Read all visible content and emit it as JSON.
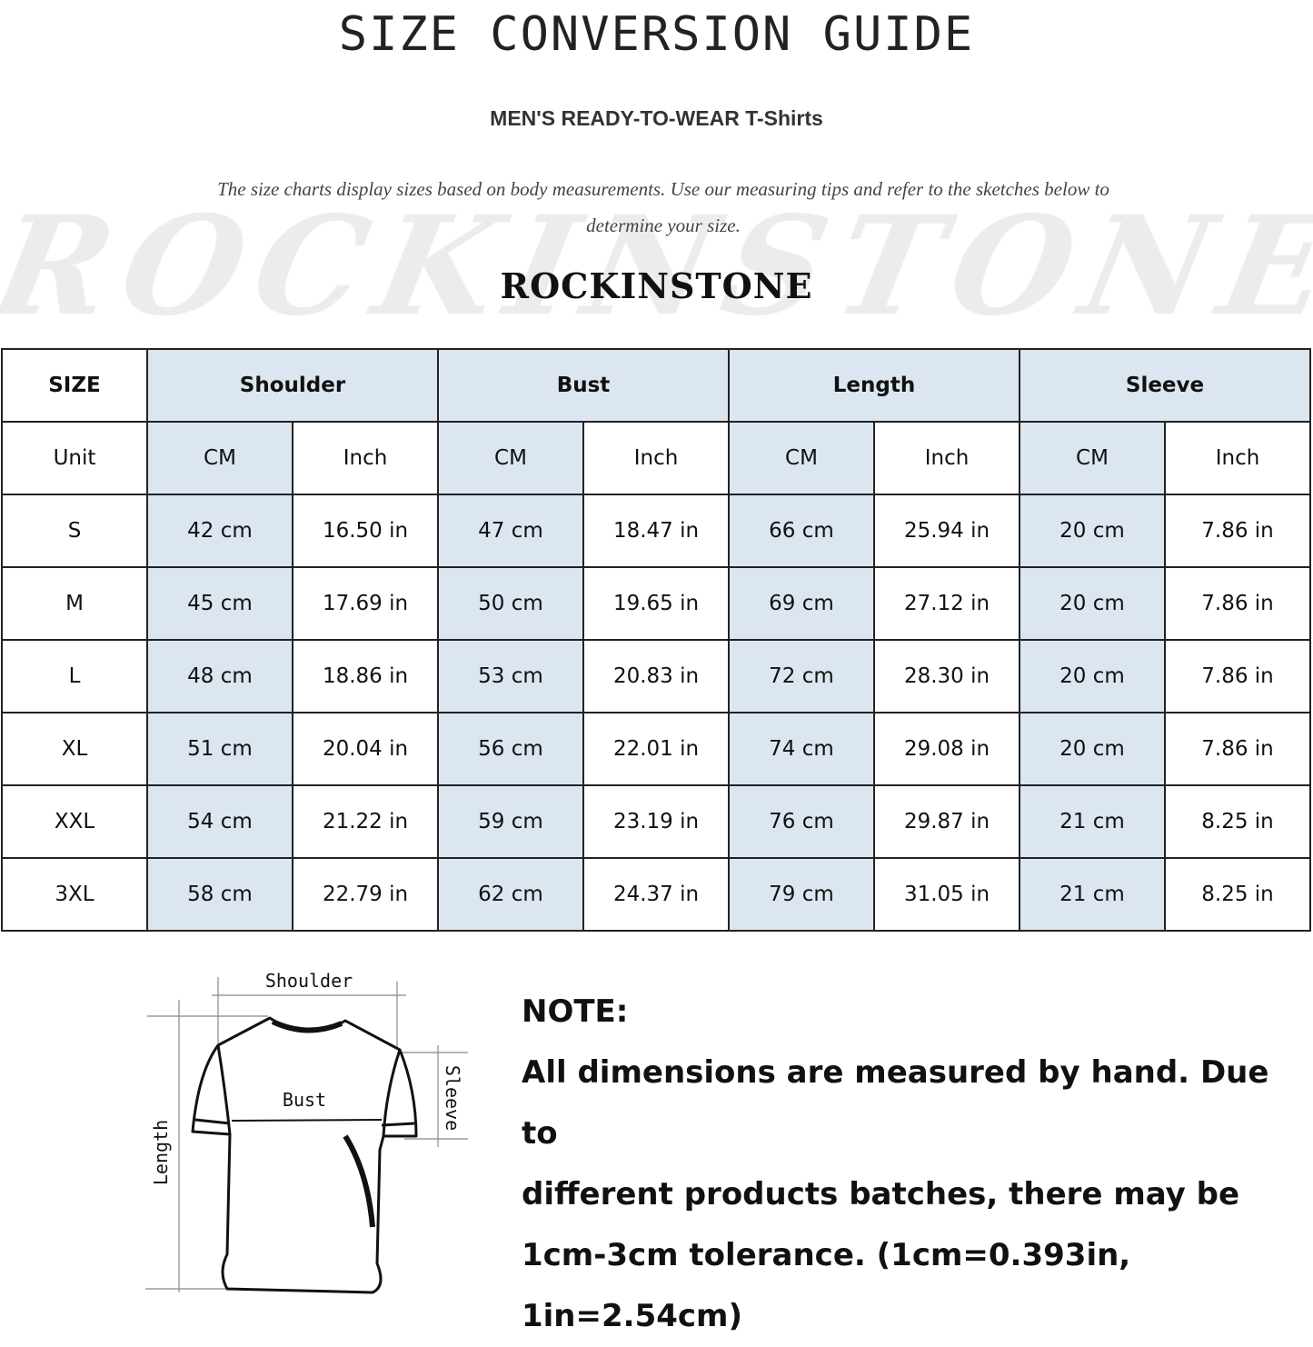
{
  "title": "SIZE CONVERSION GUIDE",
  "subtitle": "MEN'S READY-TO-WEAR T-Shirts",
  "description": "The size charts display sizes based on body measurements. Use our measuring tips and refer to the sketches below to determine your size.",
  "watermark": "ROCKINSTONE",
  "brand": "ROCKINSTONE",
  "colors": {
    "header_fill": "#dce6f0",
    "border": "#222222"
  },
  "table": {
    "size_label": "SIZE",
    "unit_label": "Unit",
    "groups": [
      "Shoulder",
      "Bust",
      "Length",
      "Sleeve"
    ],
    "units": [
      "CM",
      "Inch",
      "CM",
      "Inch",
      "CM",
      "Inch",
      "CM",
      "Inch"
    ],
    "rows": [
      {
        "size": "S",
        "values": [
          "42 cm",
          "16.50 in",
          "47 cm",
          "18.47  in",
          "66 cm",
          "25.94  in",
          "20 cm",
          "7.86  in"
        ]
      },
      {
        "size": "M",
        "values": [
          "45 cm",
          "17.69  in",
          "50 cm",
          "19.65  in",
          "69 cm",
          "27.12  in",
          "20 cm",
          "7.86  in"
        ]
      },
      {
        "size": "L",
        "values": [
          "48 cm",
          "18.86  in",
          "53 cm",
          "20.83  in",
          "72 cm",
          "28.30  in",
          "20 cm",
          "7.86  in"
        ]
      },
      {
        "size": "XL",
        "values": [
          "51 cm",
          "20.04  in",
          "56 cm",
          "22.01  in",
          "74 cm",
          "29.08  in",
          "20 cm",
          "7.86  in"
        ]
      },
      {
        "size": "XXL",
        "values": [
          "54 cm",
          "21.22  in",
          "59 cm",
          "23.19  in",
          "76 cm",
          "29.87  in",
          "21 cm",
          "8.25  in"
        ]
      },
      {
        "size": "3XL",
        "values": [
          "58 cm",
          "22.79  in",
          "62 cm",
          "24.37  in",
          "79 cm",
          "31.05  in",
          "21 cm",
          "8.25  in"
        ]
      }
    ]
  },
  "diagram": {
    "shoulder": "Shoulder",
    "bust": "Bust",
    "length": "Length",
    "sleeve": "Sleeve"
  },
  "note": {
    "heading": "NOTE:",
    "lines": [
      "All dimensions are measured by hand. Due to",
      "different products batches, there may be",
      "1cm-3cm tolerance. (1cm=0.393in, 1in=2.54cm)"
    ]
  }
}
